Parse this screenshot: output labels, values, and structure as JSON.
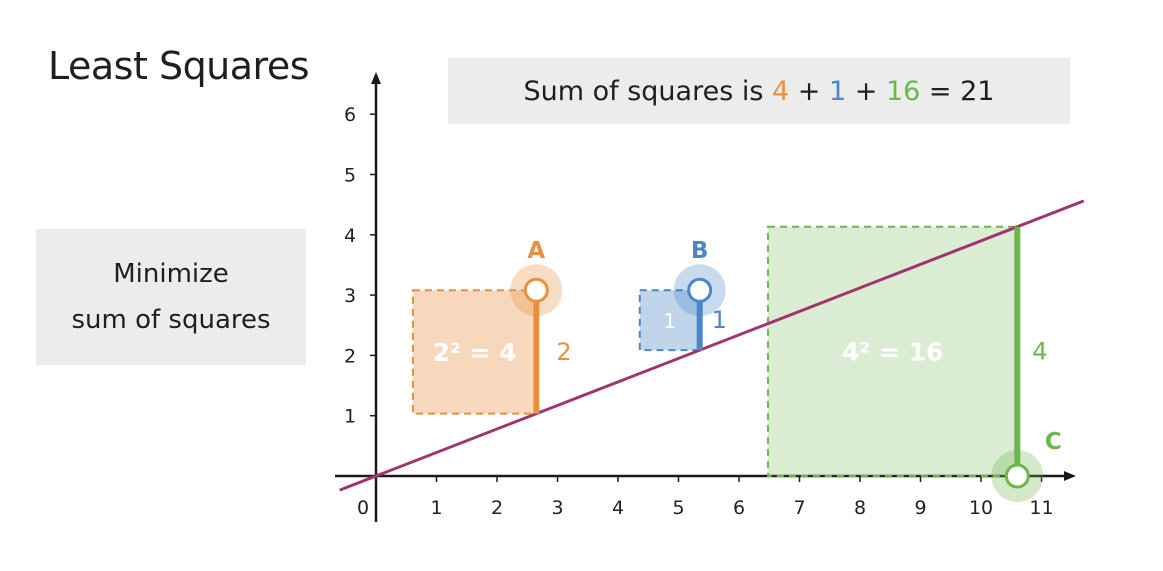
{
  "title": "Least Squares",
  "sum_box": {
    "prefix": "Sum of squares is ",
    "term1": "4",
    "plus1": " + ",
    "term2": "1",
    "plus2": " + ",
    "term3": "16",
    "result": " = 21"
  },
  "minimize_box": {
    "line1": "Minimize",
    "line2": "sum of squares"
  },
  "colors": {
    "A": "#e8903e",
    "B": "#4a86c8",
    "C": "#6cb64c",
    "line": "#a0356e",
    "axis": "#1a1a1a"
  },
  "chart_data": {
    "type": "scatter",
    "xlim": [
      0,
      11.5
    ],
    "ylim": [
      -0.5,
      6.5
    ],
    "x_ticks": [
      "0",
      "1",
      "2",
      "3",
      "4",
      "5",
      "6",
      "7",
      "8",
      "9",
      "10",
      "11"
    ],
    "y_ticks": [
      "1",
      "2",
      "3",
      "4",
      "5",
      "6"
    ],
    "line": {
      "slope": 0.39,
      "intercept": 0
    },
    "points": [
      {
        "label": "A",
        "x": 2.65,
        "y": 3.08,
        "residual": 2,
        "square_label": "2² = 4",
        "residual_label": "2"
      },
      {
        "label": "B",
        "x": 5.35,
        "y": 3.08,
        "residual": 1,
        "square_label": "1",
        "residual_label": "1"
      },
      {
        "label": "C",
        "x": 10.6,
        "y": 0,
        "residual": 4,
        "square_label": "4² = 16",
        "residual_label": "4"
      }
    ]
  }
}
